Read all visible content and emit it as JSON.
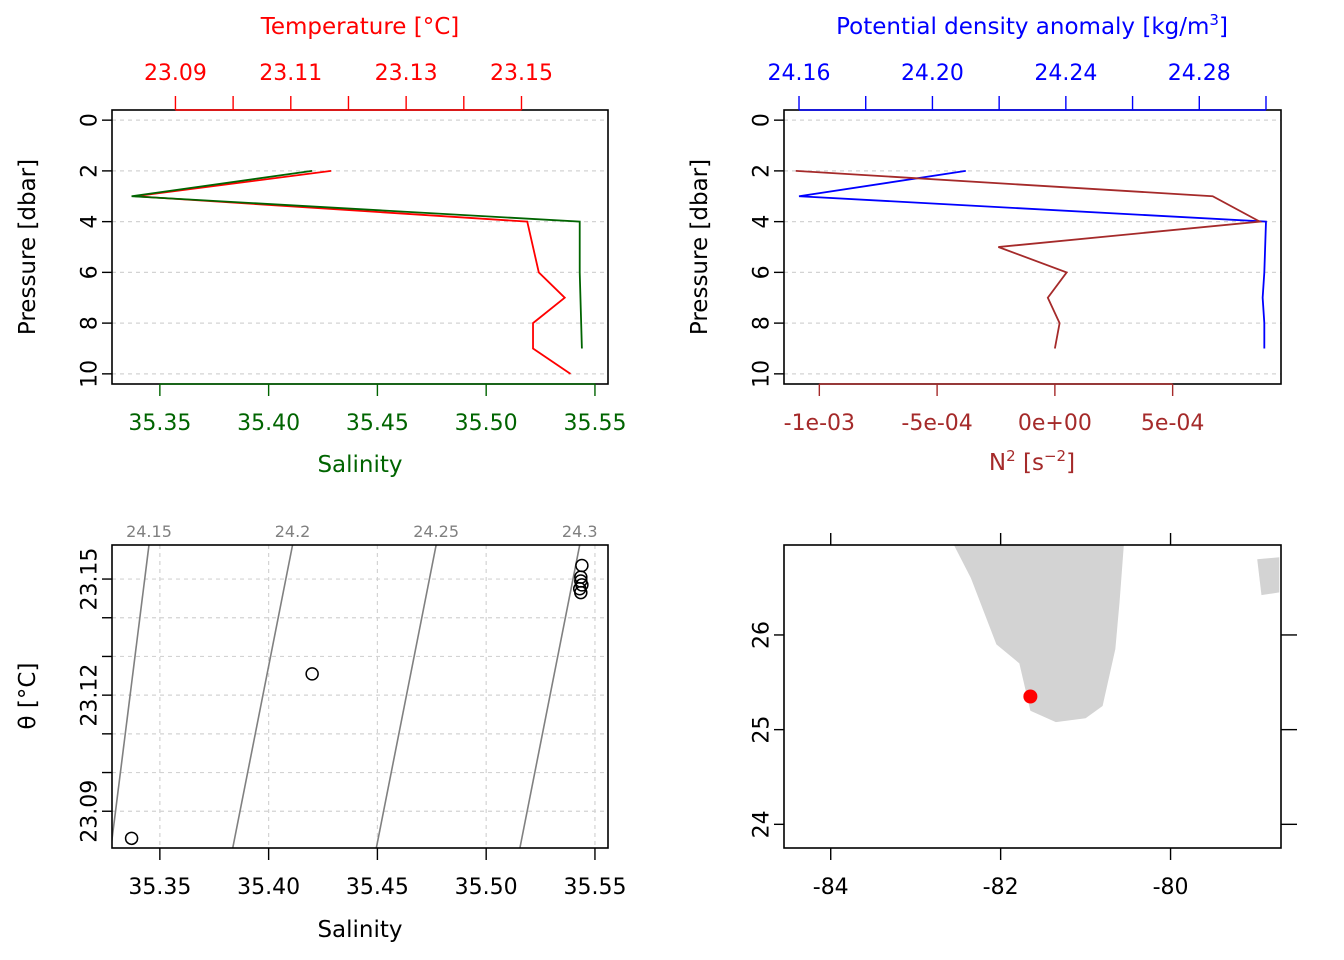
{
  "chart_data": [
    {
      "id": "ts_profile",
      "type": "line",
      "title": "Temperature [°C]",
      "xlabel": "Salinity",
      "ylabel": "Pressure [dbar]",
      "top_axis": {
        "label": "Temperature [°C]",
        "ticks": [
          23.09,
          23.1,
          23.11,
          23.12,
          23.13,
          23.14,
          23.15
        ],
        "tick_labels": [
          "23.09",
          "23.11",
          "23.13",
          "23.15"
        ],
        "range": [
          23.079,
          23.165
        ],
        "color": "#ff0000"
      },
      "bottom_axis": {
        "label": "Salinity",
        "ticks": [
          35.35,
          35.4,
          35.45,
          35.5,
          35.55
        ],
        "tick_labels": [
          "35.35",
          "35.40",
          "35.45",
          "35.50",
          "35.55"
        ],
        "range": [
          35.328,
          35.556
        ],
        "color": "#006400"
      },
      "left_axis": {
        "ticks": [
          0,
          2,
          4,
          6,
          8,
          10
        ],
        "tick_labels": [
          "0",
          "2",
          "4",
          "6",
          "8",
          "10"
        ],
        "range": [
          10.4,
          -0.4
        ],
        "reversed": true
      },
      "grid": true,
      "series": [
        {
          "axis": "top",
          "color": "#ff0000",
          "pressure": [
            2,
            3,
            4,
            6,
            7,
            8,
            9,
            10
          ],
          "values": [
            23.117,
            23.083,
            23.151,
            23.153,
            23.1575,
            23.152,
            23.152,
            23.1585
          ]
        },
        {
          "axis": "bottom",
          "color": "#006400",
          "pressure": [
            2,
            3,
            4,
            6,
            9
          ],
          "values": [
            35.42,
            35.337,
            35.543,
            35.543,
            35.544
          ]
        }
      ]
    },
    {
      "id": "density_profile",
      "type": "line",
      "title": "Potential density anomaly [kg/m3]",
      "xlabel": "N2 [s-2]",
      "ylabel": "Pressure [dbar]",
      "top_axis": {
        "label": "Potential density anomaly [kg/m3]",
        "ticks": [
          24.16,
          24.18,
          24.2,
          24.22,
          24.24,
          24.26,
          24.28,
          24.3
        ],
        "tick_labels": [
          "24.16",
          "24.20",
          "24.24",
          "24.28"
        ],
        "range": [
          24.1555,
          24.3045
        ],
        "color": "#0000ff"
      },
      "bottom_axis": {
        "label": "N2 [s-2]",
        "ticks": [
          -0.001,
          -0.0005,
          0,
          0.0005
        ],
        "tick_labels": [
          "-1e-03",
          "-5e-04",
          "0e+00",
          "5e-04"
        ],
        "range": [
          -0.00115,
          0.00096
        ],
        "color": "#a52a2a"
      },
      "left_axis": {
        "ticks": [
          0,
          2,
          4,
          6,
          8,
          10
        ],
        "tick_labels": [
          "0",
          "2",
          "4",
          "6",
          "8",
          "10"
        ],
        "range": [
          10.4,
          -0.4
        ],
        "reversed": true
      },
      "grid": true,
      "series": [
        {
          "axis": "top",
          "color": "#0000ff",
          "pressure": [
            2,
            3,
            4,
            6,
            7,
            8,
            9
          ],
          "values": [
            24.21,
            24.16,
            24.3,
            24.2995,
            24.299,
            24.2995,
            24.2995
          ]
        },
        {
          "axis": "bottom",
          "color": "#a52a2a",
          "pressure": [
            2,
            3,
            4,
            5,
            6,
            7,
            8,
            9
          ],
          "values": [
            -0.0011,
            0.00067,
            0.00087,
            -0.00024,
            5e-05,
            -3e-05,
            2e-05,
            0.0
          ]
        }
      ]
    },
    {
      "id": "ts_diagram",
      "type": "scatter",
      "xlabel": "Salinity",
      "ylabel": "θ [°C]",
      "x_ticks": [
        35.35,
        35.4,
        35.45,
        35.5,
        35.55
      ],
      "x_tick_labels": [
        "35.35",
        "35.40",
        "35.45",
        "35.50",
        "35.55"
      ],
      "xlim": [
        35.328,
        35.556
      ],
      "y_ticks": [
        23.09,
        23.1,
        23.11,
        23.12,
        23.13,
        23.14,
        23.15
      ],
      "y_tick_labels": [
        "23.09",
        "23.12",
        "23.15"
      ],
      "ylim": [
        23.0805,
        23.1588
      ],
      "grid": true,
      "isopycnals": [
        {
          "label": "24.15",
          "s_top": 35.345,
          "s_bottom": 35.3275
        },
        {
          "label": "24.2",
          "s_top": 35.411,
          "s_bottom": 35.3835
        },
        {
          "label": "24.25",
          "s_top": 35.477,
          "s_bottom": 35.4495
        },
        {
          "label": "24.3",
          "s_top": 35.543,
          "s_bottom": 35.5155
        }
      ],
      "points": [
        {
          "s": 35.337,
          "t": 23.083
        },
        {
          "s": 35.42,
          "t": 23.1255
        },
        {
          "s": 35.544,
          "t": 23.1535
        },
        {
          "s": 35.5435,
          "t": 23.1505
        },
        {
          "s": 35.5435,
          "t": 23.1495
        },
        {
          "s": 35.544,
          "t": 23.1485
        },
        {
          "s": 35.543,
          "t": 23.1475
        },
        {
          "s": 35.5435,
          "t": 23.1465
        }
      ]
    },
    {
      "id": "station_map",
      "type": "scatter",
      "x_ticks": [
        -84,
        -82,
        -80
      ],
      "x_tick_labels": [
        "-84",
        "-82",
        "-80"
      ],
      "xlim": [
        -84.55,
        -78.7
      ],
      "y_ticks": [
        24,
        25,
        26
      ],
      "y_tick_labels": [
        "24",
        "25",
        "26"
      ],
      "ylim": [
        23.75,
        26.95
      ],
      "land_color": "#d3d3d3",
      "station": {
        "lon": -81.65,
        "lat": 25.35,
        "color": "#ff0000"
      },
      "land": [
        [
          [
            -82.35,
            26.95
          ],
          [
            -80.55,
            26.95
          ],
          [
            -80.6,
            26.35
          ],
          [
            -80.65,
            25.85
          ],
          [
            -80.8,
            25.25
          ],
          [
            -81.0,
            25.12
          ],
          [
            -81.35,
            25.08
          ],
          [
            -81.65,
            25.2
          ],
          [
            -81.78,
            25.7
          ],
          [
            -82.05,
            25.9
          ],
          [
            -82.35,
            26.6
          ],
          [
            -82.55,
            26.95
          ]
        ],
        [
          [
            -78.98,
            26.8
          ],
          [
            -78.72,
            26.82
          ],
          [
            -78.72,
            26.45
          ],
          [
            -78.93,
            26.42
          ]
        ]
      ]
    }
  ]
}
